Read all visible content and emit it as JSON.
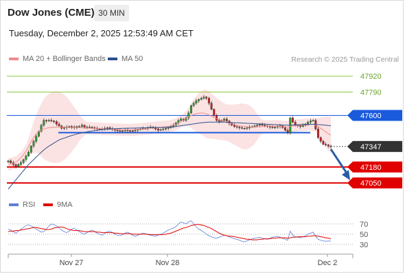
{
  "header": {
    "title": "Dow Jones (CME)",
    "timeframe": "30 MIN",
    "datetime": "Tuesday, December 2, 2025 12:53:49 AM CET"
  },
  "legend": {
    "ma20": "MA 20 + Bollinger Bands",
    "ma50": "MA 50",
    "copyright": "Research © 2025 Trading Central",
    "ma20_color": "#f08b8b",
    "ma50_color": "#2b4f8f"
  },
  "rsi_legend": {
    "rsi": "RSI",
    "ma9": "9MA",
    "rsi_color": "#5b7fd6",
    "ma9_color": "#e00000"
  },
  "chart_data": [
    {
      "type": "candlestick",
      "x_ticks": [
        "Nov 27",
        "Nov 28",
        "Dec 2"
      ],
      "ylim": [
        46950,
        48010
      ],
      "price_levels": [
        {
          "value": 47920,
          "label": "47920",
          "kind": "resistance",
          "color": "#8cc63f"
        },
        {
          "value": 47790,
          "label": "47790",
          "kind": "resistance",
          "color": "#8cc63f"
        },
        {
          "value": 47600,
          "label": "47600",
          "kind": "pivot",
          "color": "#1a5adc"
        },
        {
          "value": 47347,
          "label": "47347",
          "kind": "last",
          "color": "#333333"
        },
        {
          "value": 47180,
          "label": "47180",
          "kind": "support",
          "color": "#e00000"
        },
        {
          "value": 47050,
          "label": "47050",
          "kind": "support",
          "color": "#e00000"
        }
      ],
      "pivot_line_value": 47460,
      "arrow": {
        "from": 47347,
        "to": 47050,
        "direction": "down"
      },
      "close": [
        47230,
        47215,
        47200,
        47185,
        47200,
        47215,
        47240,
        47270,
        47300,
        47350,
        47390,
        47430,
        47470,
        47520,
        47560,
        47555,
        47560,
        47555,
        47550,
        47530,
        47515,
        47495,
        47500,
        47505,
        47510,
        47500,
        47505,
        47510,
        47510,
        47520,
        47505,
        47505,
        47505,
        47500,
        47495,
        47490,
        47485,
        47490,
        47495,
        47500,
        47490,
        47485,
        47480,
        47475,
        47470,
        47475,
        47480,
        47475,
        47470,
        47475,
        47480,
        47485,
        47490,
        47495,
        47495,
        47500,
        47505,
        47500,
        47490,
        47480,
        47485,
        47490,
        47495,
        47500,
        47510,
        47520,
        47540,
        47560,
        47570,
        47560,
        47580,
        47620,
        47680,
        47700,
        47720,
        47730,
        47740,
        47750,
        47740,
        47700,
        47650,
        47600,
        47560,
        47550,
        47560,
        47570,
        47555,
        47535,
        47520,
        47510,
        47505,
        47500,
        47495,
        47495,
        47500,
        47505,
        47510,
        47515,
        47520,
        47530,
        47520,
        47515,
        47510,
        47505,
        47500,
        47505,
        47510,
        47515,
        47500,
        47480,
        47460,
        47580,
        47545,
        47520,
        47515,
        47510,
        47520,
        47530,
        47545,
        47555,
        47560,
        47490,
        47420,
        47390,
        47365,
        47360,
        47350,
        47347
      ],
      "ma20": [
        47200,
        47205,
        47210,
        47220,
        47235,
        47255,
        47280,
        47310,
        47345,
        47385,
        47420,
        47450,
        47470,
        47480,
        47490,
        47495,
        47500,
        47502,
        47503,
        47504,
        47505,
        47505,
        47504,
        47503,
        47502,
        47501,
        47500,
        47500,
        47500,
        47499,
        47498,
        47497,
        47496,
        47495,
        47494,
        47493,
        47492,
        47491,
        47490,
        47489,
        47488,
        47487,
        47486,
        47485,
        47484,
        47483,
        47482,
        47482,
        47482,
        47483,
        47484,
        47486,
        47488,
        47490,
        47492,
        47494,
        47496,
        47498,
        47500,
        47502,
        47504,
        47506,
        47508,
        47510,
        47514,
        47520,
        47528,
        47538,
        47550,
        47562,
        47575,
        47588,
        47600,
        47608,
        47614,
        47618,
        47620,
        47618,
        47612,
        47604,
        47594,
        47584,
        47574,
        47564,
        47556,
        47548,
        47542,
        47536,
        47530,
        47525,
        47520,
        47516,
        47512,
        47510,
        47508,
        47507,
        47506,
        47506,
        47507,
        47508,
        47509,
        47510,
        47511,
        47512,
        47512,
        47512,
        47511,
        47510,
        47508,
        47506,
        47505,
        47510,
        47514,
        47516,
        47518,
        47520,
        47522,
        47524,
        47526,
        47527,
        47528,
        47522,
        47510,
        47495,
        47480,
        47465,
        47450,
        47440
      ],
      "ma50": [
        47000,
        47025,
        47050,
        47075,
        47100,
        47125,
        47150,
        47175,
        47200,
        47220,
        47240,
        47260,
        47280,
        47300,
        47318,
        47335,
        47350,
        47362,
        47375,
        47388,
        47400,
        47408,
        47415,
        47422,
        47430,
        47436,
        47442,
        47448,
        47453,
        47458,
        47462,
        47466,
        47470,
        47473,
        47476,
        47479,
        47482,
        47484,
        47486,
        47488,
        47490,
        47491,
        47492,
        47493,
        47494,
        47495,
        47495,
        47496,
        47496,
        47497,
        47497,
        47498,
        47498,
        47499,
        47499,
        47500,
        47500,
        47500,
        47501,
        47501,
        47502,
        47502,
        47503,
        47504,
        47505,
        47507,
        47510,
        47513,
        47516,
        47519,
        47522,
        47525,
        47528,
        47531,
        47534,
        47537,
        47540,
        47542,
        47544,
        47545,
        47546,
        47546,
        47546,
        47546,
        47546,
        47545,
        47544,
        47543,
        47542,
        47541,
        47540,
        47539,
        47538,
        47537,
        47536,
        47535,
        47534,
        47533,
        47532,
        47531,
        47530,
        47529,
        47528,
        47527,
        47526,
        47525,
        47524,
        47523,
        47522,
        47521,
        47520,
        47521,
        47522,
        47523,
        47524,
        47525,
        47526,
        47526,
        47527,
        47527,
        47528,
        47527,
        47526,
        47524,
        47522,
        47520,
        47518,
        47516
      ]
    },
    {
      "type": "line",
      "name": "RSI",
      "y_ticks": [
        70,
        50,
        30
      ],
      "ylim": [
        15,
        90
      ],
      "rsi": [
        60,
        58,
        55,
        52,
        56,
        60,
        63,
        67,
        68,
        66,
        64,
        60,
        57,
        54,
        55,
        60,
        66,
        70,
        69,
        66,
        62,
        58,
        55,
        53,
        56,
        60,
        62,
        58,
        55,
        52,
        50,
        53,
        56,
        58,
        55,
        52,
        50,
        48,
        52,
        55,
        56,
        53,
        50,
        48,
        47,
        49,
        52,
        54,
        51,
        48,
        46,
        48,
        50,
        52,
        51,
        49,
        48,
        47,
        46,
        48,
        50,
        52,
        55,
        58,
        60,
        62,
        65,
        70,
        74,
        72,
        70,
        74,
        76,
        70,
        64,
        60,
        57,
        54,
        50,
        47,
        45,
        43,
        42,
        44,
        46,
        48,
        47,
        45,
        43,
        41,
        40,
        38,
        36,
        35,
        37,
        39,
        41,
        42,
        43,
        44,
        42,
        41,
        40,
        42,
        44,
        45,
        46,
        44,
        42,
        40,
        38,
        56,
        48,
        45,
        44,
        43,
        45,
        47,
        50,
        52,
        54,
        46,
        40,
        38,
        37,
        36,
        37,
        36
      ],
      "ma9": [
        55,
        56,
        56,
        57,
        57,
        58,
        59,
        60,
        61,
        62,
        63,
        63,
        62,
        61,
        60,
        59,
        59,
        60,
        62,
        63,
        64,
        64,
        63,
        61,
        59,
        58,
        57,
        57,
        57,
        56,
        55,
        55,
        55,
        55,
        55,
        54,
        54,
        53,
        53,
        53,
        53,
        53,
        52,
        52,
        51,
        51,
        51,
        51,
        51,
        50,
        50,
        50,
        50,
        50,
        50,
        50,
        49,
        49,
        49,
        49,
        49,
        49,
        50,
        51,
        52,
        54,
        56,
        58,
        60,
        62,
        63,
        65,
        67,
        68,
        69,
        69,
        68,
        67,
        65,
        63,
        61,
        58,
        55,
        52,
        50,
        48,
        47,
        46,
        46,
        45,
        44,
        43,
        42,
        41,
        40,
        40,
        39,
        39,
        39,
        40,
        40,
        41,
        41,
        41,
        42,
        42,
        43,
        43,
        43,
        43,
        42,
        43,
        44,
        44,
        45,
        45,
        45,
        45,
        46,
        46,
        47,
        47,
        46,
        45,
        44,
        43,
        42,
        41
      ]
    }
  ]
}
